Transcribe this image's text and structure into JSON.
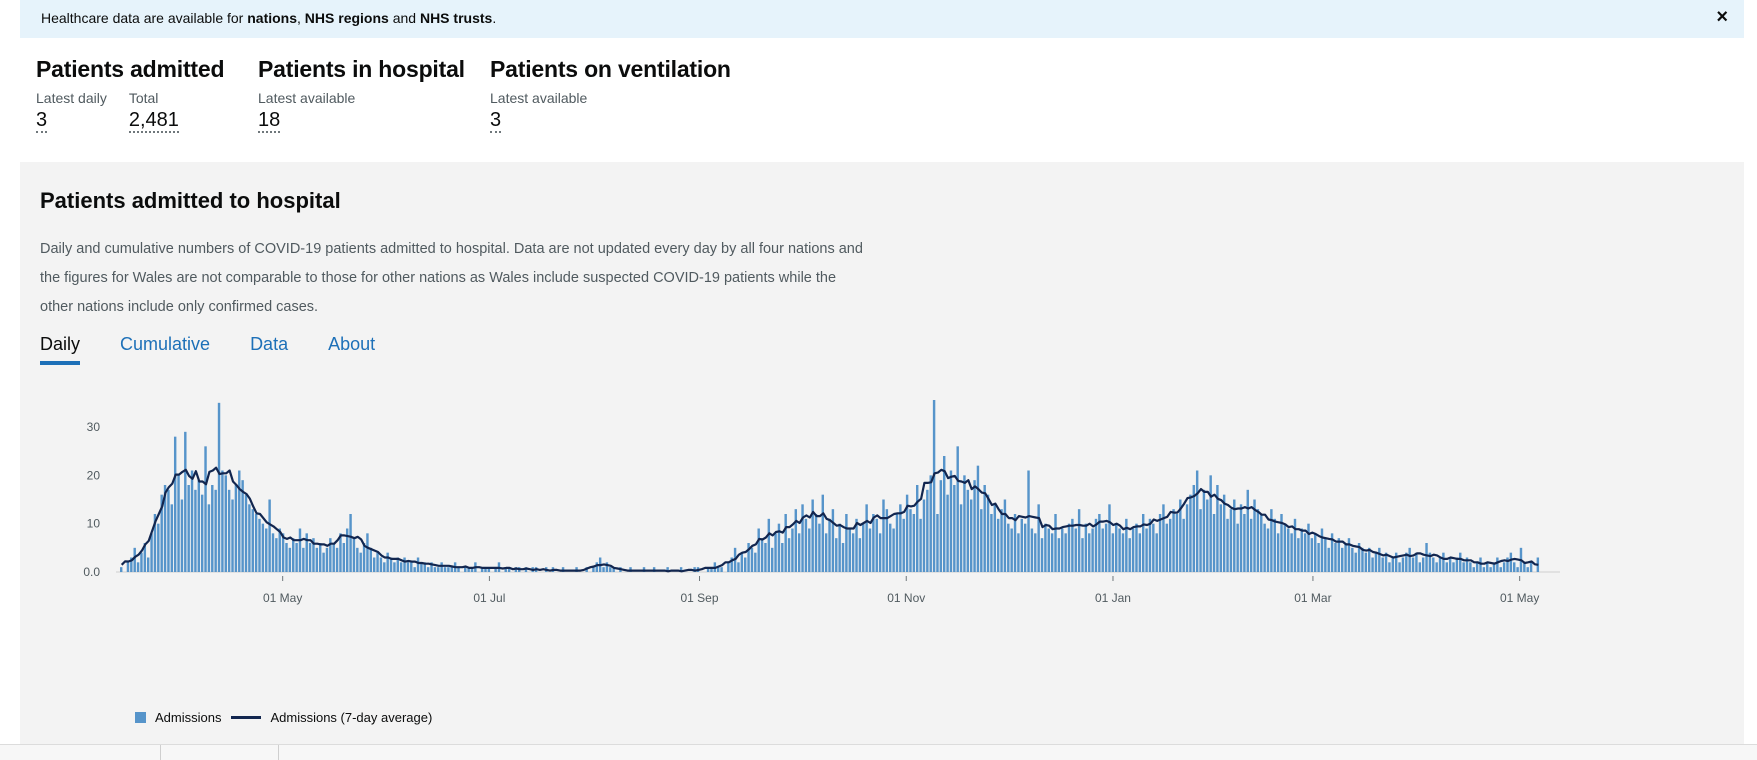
{
  "banner": {
    "prefix": "Healthcare data are available for ",
    "nations": "nations",
    "sep1": ", ",
    "regions": "NHS regions",
    "and": " and ",
    "trusts": "NHS trusts",
    "suffix": ".",
    "close": "×"
  },
  "headlines": {
    "admitted": {
      "title": "Patients admitted",
      "metrics": [
        {
          "label": "Latest daily",
          "value": "3"
        },
        {
          "label": "Total",
          "value": "2,481"
        }
      ]
    },
    "in_hospital": {
      "title": "Patients in hospital",
      "metrics": [
        {
          "label": "Latest available",
          "value": "18"
        }
      ]
    },
    "ventilation": {
      "title": "Patients on ventilation",
      "metrics": [
        {
          "label": "Latest available",
          "value": "3"
        }
      ]
    }
  },
  "card": {
    "title": "Patients admitted to hospital",
    "description": "Daily and cumulative numbers of COVID-19 patients admitted to hospital. Data are not updated every day by all four nations and the figures for Wales are not comparable to those for other nations as Wales include suspected COVID-19 patients while the other nations include only confirmed cases.",
    "tabs": [
      {
        "label": "Daily",
        "active": true
      },
      {
        "label": "Cumulative",
        "active": false
      },
      {
        "label": "Data",
        "active": false
      },
      {
        "label": "About",
        "active": false
      }
    ]
  },
  "legend": {
    "bars": "Admissions",
    "line": "Admissions (7-day average)"
  },
  "colors": {
    "bar": "#5694ca",
    "line": "#12264f",
    "tab_active": "#1d70b8",
    "banner_bg": "#e6f3fb",
    "card_bg": "#f3f3f3"
  },
  "chart_data": {
    "type": "bar",
    "ylim": [
      0,
      36
    ],
    "y_ticks": [
      "0.0",
      "10",
      "20",
      "30"
    ],
    "x_ticks": [
      "01 May",
      "01 Jul",
      "01 Sep",
      "01 Nov",
      "01 Jan",
      "01 Mar",
      "01 May"
    ],
    "grid": true,
    "legend_position": "bottom-left",
    "series": [
      {
        "name": "Admissions",
        "type": "bar"
      },
      {
        "name": "Admissions (7-day average)",
        "type": "line"
      }
    ],
    "x_start_date": "2020-03-14",
    "x_end_date": "2021-05-07",
    "values": [
      1,
      0,
      2,
      3,
      5,
      2,
      4,
      6,
      3,
      8,
      12,
      10,
      16,
      18,
      17,
      14,
      28,
      20,
      15,
      29,
      18,
      21,
      17,
      19,
      16,
      26,
      14,
      18,
      17,
      35,
      21,
      20,
      17,
      15,
      18,
      21,
      19,
      16,
      14,
      13,
      12,
      11,
      10,
      9,
      15,
      8,
      7,
      9,
      8,
      6,
      5,
      7,
      6,
      9,
      5,
      8,
      6,
      7,
      5,
      6,
      4,
      5,
      7,
      6,
      5,
      8,
      6,
      9,
      12,
      7,
      5,
      4,
      6,
      8,
      5,
      3,
      4,
      3,
      2,
      4,
      3,
      2,
      3,
      2,
      3,
      2,
      2,
      1,
      3,
      2,
      2,
      1,
      2,
      1,
      1,
      2,
      1,
      1,
      1,
      2,
      1,
      0,
      1,
      1,
      1,
      2,
      0,
      1,
      1,
      1,
      0,
      1,
      2,
      0,
      1,
      1,
      0,
      1,
      1,
      0,
      1,
      0,
      1,
      1,
      0,
      0,
      1,
      0,
      1,
      0,
      0,
      1,
      0,
      0,
      0,
      1,
      0,
      0,
      1,
      0,
      1,
      2,
      3,
      1,
      2,
      1,
      1,
      0,
      1,
      0,
      0,
      1,
      0,
      0,
      0,
      1,
      0,
      0,
      1,
      0,
      0,
      0,
      1,
      0,
      0,
      0,
      1,
      0,
      0,
      0,
      1,
      1,
      0,
      0,
      1,
      1,
      2,
      1,
      1,
      0,
      2,
      3,
      5,
      2,
      4,
      3,
      6,
      5,
      4,
      9,
      7,
      6,
      11,
      5,
      8,
      10,
      6,
      12,
      7,
      9,
      13,
      8,
      14,
      11,
      9,
      15,
      12,
      10,
      16,
      8,
      11,
      13,
      7,
      10,
      6,
      12,
      9,
      8,
      11,
      7,
      10,
      14,
      9,
      12,
      11,
      8,
      15,
      13,
      10,
      9,
      12,
      14,
      11,
      16,
      13,
      12,
      18,
      11,
      15,
      17,
      20,
      36,
      12,
      19,
      24,
      16,
      21,
      18,
      26,
      14,
      20,
      17,
      15,
      19,
      22,
      13,
      18,
      16,
      12,
      14,
      11,
      13,
      15,
      10,
      9,
      12,
      8,
      11,
      10,
      21,
      9,
      8,
      14,
      7,
      10,
      9,
      8,
      12,
      7,
      9,
      8,
      10,
      11,
      9,
      13,
      7,
      10,
      8,
      9,
      11,
      12,
      9,
      10,
      14,
      8,
      10,
      9,
      8,
      11,
      7,
      9,
      10,
      8,
      12,
      9,
      11,
      10,
      8,
      12,
      14,
      10,
      11,
      13,
      12,
      15,
      11,
      14,
      16,
      18,
      21,
      13,
      17,
      15,
      20,
      12,
      18,
      14,
      16,
      11,
      13,
      15,
      10,
      14,
      12,
      17,
      11,
      15,
      13,
      12,
      10,
      9,
      13,
      11,
      8,
      12,
      10,
      9,
      8,
      11,
      7,
      9,
      8,
      10,
      7,
      8,
      6,
      9,
      7,
      5,
      8,
      6,
      7,
      5,
      6,
      7,
      5,
      4,
      6,
      5,
      4,
      5,
      3,
      4,
      5,
      3,
      4,
      2,
      3,
      4,
      2,
      3,
      4,
      5,
      3,
      4,
      2,
      3,
      6,
      4,
      3,
      2,
      3,
      4,
      2,
      3,
      2,
      3,
      4,
      2,
      3,
      2,
      1,
      2,
      3,
      1,
      2,
      1,
      2,
      3,
      1,
      2,
      3,
      4,
      2,
      1,
      5,
      2,
      1,
      2,
      0,
      3
    ]
  }
}
